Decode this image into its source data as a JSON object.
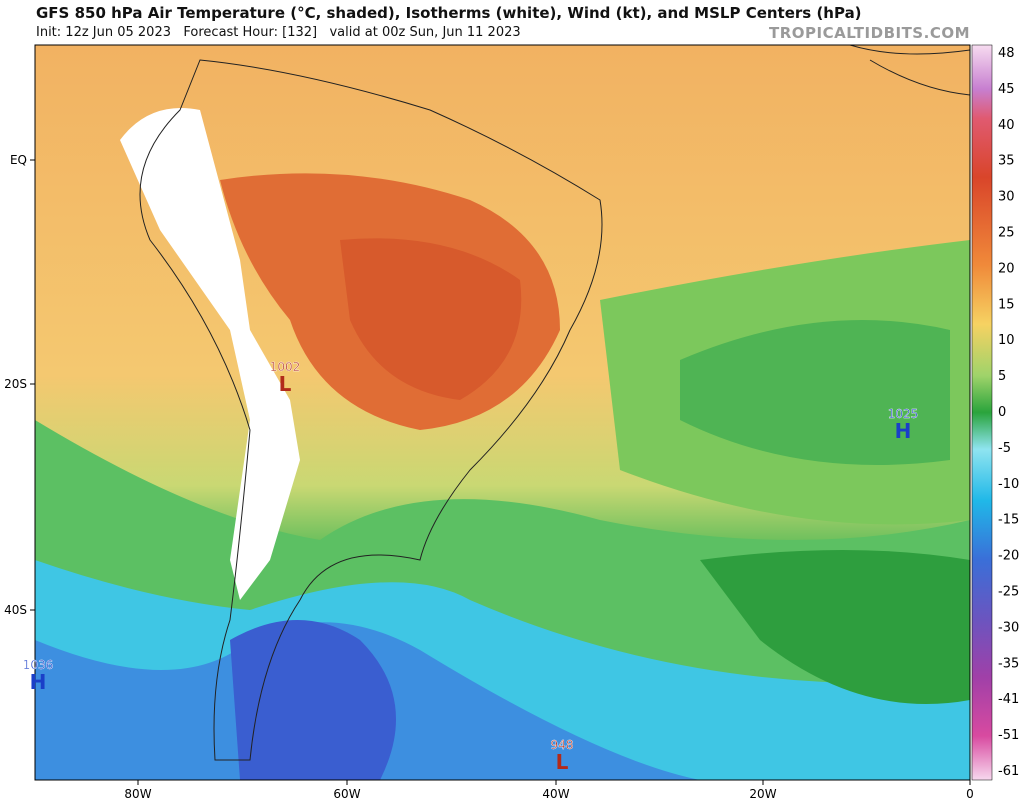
{
  "header": {
    "title": "GFS 850 hPa Air Temperature (°C, shaded), Isotherms (white), Wind (kt), and MSLP Centers (hPa)",
    "subtitle": "Init: 12z Jun 05 2023   Forecast Hour: [132]   valid at 00z Sun, Jun 11 2023",
    "site": "TROPICALTIDBITS.COM"
  },
  "map": {
    "lat_labels": [
      "EQ",
      "20S",
      "40S"
    ],
    "lon_labels": [
      "80W",
      "60W",
      "40W",
      "20W",
      "0"
    ],
    "centers": [
      {
        "pressure": "1002",
        "type": "L"
      },
      {
        "pressure": "1025",
        "type": "H"
      },
      {
        "pressure": "1036",
        "type": "H"
      },
      {
        "pressure": "948",
        "type": "L"
      }
    ]
  },
  "colorbar": {
    "labels": [
      48,
      45,
      40,
      35,
      30,
      25,
      20,
      15,
      10,
      5,
      0,
      -5,
      -10,
      -15,
      -20,
      -25,
      -30,
      -35,
      -41,
      -51,
      -61
    ]
  }
}
